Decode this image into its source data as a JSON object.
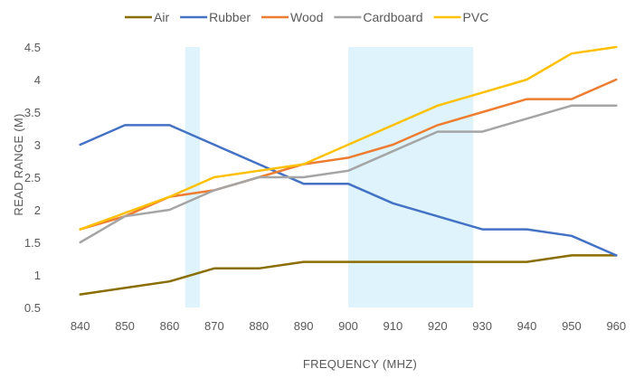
{
  "chart_data": {
    "type": "line",
    "title": "",
    "xlabel": "FREQUENCY (MHZ)",
    "ylabel": "READ RANGE (M)",
    "x": [
      840,
      850,
      860,
      870,
      880,
      890,
      900,
      910,
      920,
      930,
      940,
      950,
      960
    ],
    "x_tick_labels": [
      "840",
      "850",
      "860",
      "870",
      "880",
      "890",
      "900",
      "910",
      "920",
      "930",
      "940",
      "950",
      "960"
    ],
    "ylim": [
      0.5,
      4.5
    ],
    "y_ticks": [
      0.5,
      1,
      1.5,
      2,
      2.5,
      3,
      3.5,
      4,
      4.5
    ],
    "y_tick_labels": [
      "0.5",
      "1",
      "1.5",
      "2",
      "2.5",
      "3",
      "3.5",
      "4",
      "4.5"
    ],
    "grid": false,
    "legend_position": "top",
    "highlight_bands": [
      {
        "x_start": 863.5,
        "x_end": 866.8,
        "color": "#dff3fc"
      },
      {
        "x_start": 900,
        "x_end": 928,
        "color": "#dff3fc"
      }
    ],
    "series": [
      {
        "name": "Air",
        "color": "#8a6d00",
        "values": [
          0.7,
          0.8,
          0.9,
          1.1,
          1.1,
          1.2,
          1.2,
          1.2,
          1.2,
          1.2,
          1.2,
          1.3,
          1.3
        ]
      },
      {
        "name": "Rubber",
        "color": "#4472c4",
        "values": [
          3.0,
          3.3,
          3.3,
          3.0,
          2.7,
          2.4,
          2.4,
          2.1,
          1.9,
          1.7,
          1.7,
          1.6,
          1.3
        ]
      },
      {
        "name": "Wood",
        "color": "#ed7d31",
        "values": [
          1.7,
          1.9,
          2.2,
          2.3,
          2.5,
          2.7,
          2.8,
          3.0,
          3.3,
          3.5,
          3.7,
          3.7,
          4.0
        ]
      },
      {
        "name": "Cardboard",
        "color": "#a5a5a5",
        "values": [
          1.5,
          1.9,
          2.0,
          2.3,
          2.5,
          2.5,
          2.6,
          2.9,
          3.2,
          3.2,
          3.4,
          3.6,
          3.6
        ]
      },
      {
        "name": "PVC",
        "color": "#ffc000",
        "values": [
          1.7,
          1.95,
          2.2,
          2.5,
          2.6,
          2.7,
          3.0,
          3.3,
          3.6,
          3.8,
          4.0,
          4.4,
          4.5
        ]
      }
    ]
  }
}
